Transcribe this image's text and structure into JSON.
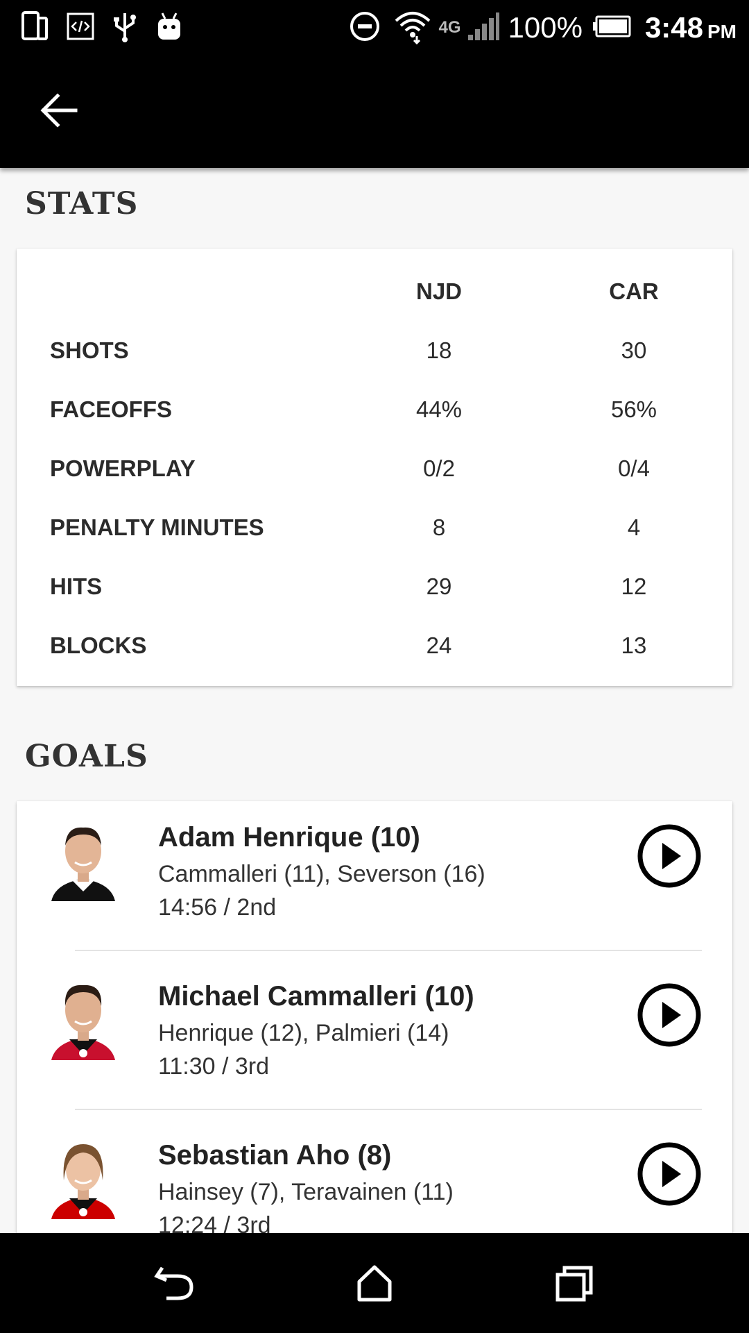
{
  "status_bar": {
    "battery": "100%",
    "network": "4G",
    "time": "3:48",
    "ampm": "PM"
  },
  "stats": {
    "title": "STATS",
    "teams": [
      "NJD",
      "CAR"
    ],
    "rows": [
      {
        "label": "SHOTS",
        "njd": "18",
        "car": "30"
      },
      {
        "label": "FACEOFFS",
        "njd": "44%",
        "car": "56%"
      },
      {
        "label": "POWERPLAY",
        "njd": "0/2",
        "car": "0/4"
      },
      {
        "label": "PENALTY MINUTES",
        "njd": "8",
        "car": "4"
      },
      {
        "label": "HITS",
        "njd": "29",
        "car": "12"
      },
      {
        "label": "BLOCKS",
        "njd": "24",
        "car": "13"
      }
    ]
  },
  "goals": {
    "title": "GOALS",
    "items": [
      {
        "scorer": "Adam Henrique (10)",
        "assists": "Cammalleri (11), Severson (16)",
        "time": "14:56 / 2nd",
        "jersey_color": "#111111"
      },
      {
        "scorer": "Michael Cammalleri (10)",
        "assists": "Henrique (12), Palmieri (14)",
        "time": "11:30 / 3rd",
        "jersey_color": "#c8102e"
      },
      {
        "scorer": "Sebastian Aho (8)",
        "assists": "Hainsey (7), Teravainen (11)",
        "time": "12:24 / 3rd",
        "jersey_color": "#cc0000"
      }
    ]
  },
  "colors": {
    "bar": "#000000",
    "background": "#f7f7f7",
    "card": "#ffffff"
  }
}
